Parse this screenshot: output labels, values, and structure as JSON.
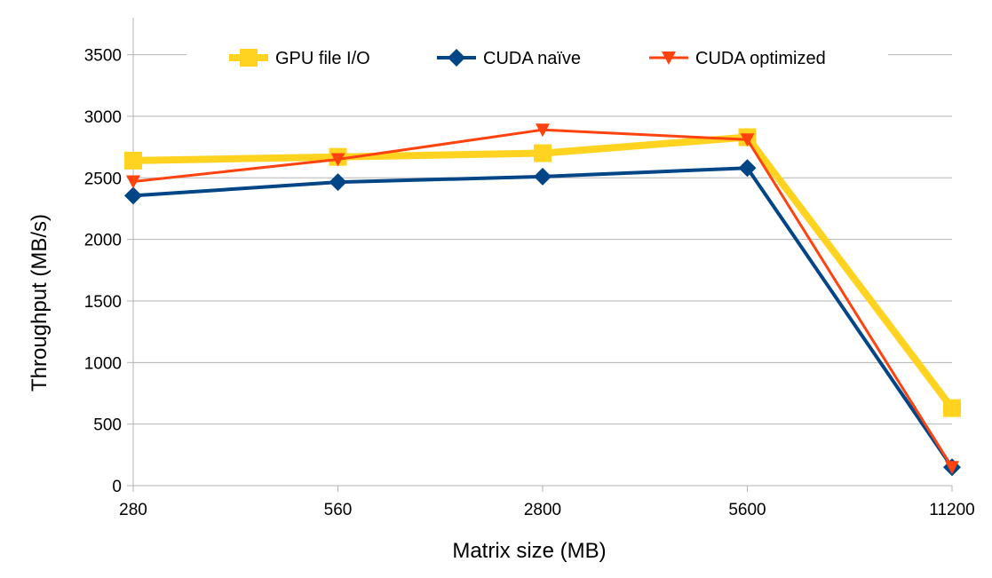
{
  "chart_data": {
    "type": "line",
    "title": "",
    "xlabel": "Matrix size (MB)",
    "ylabel": "Throughput (MB/s)",
    "categories": [
      "280",
      "560",
      "2800",
      "5600",
      "11200"
    ],
    "ylim": [
      0,
      3800
    ],
    "yticks": [
      0,
      500,
      1000,
      1500,
      2000,
      2500,
      3000,
      3500
    ],
    "grid": true,
    "legend_position": "top-center",
    "series": [
      {
        "name": "GPU file I/O",
        "values": [
          2640,
          2670,
          2700,
          2830,
          630
        ],
        "color": "#ffd320",
        "marker": "square"
      },
      {
        "name": "CUDA naïve",
        "values": [
          2355,
          2465,
          2510,
          2580,
          150
        ],
        "color": "#004586",
        "marker": "diamond"
      },
      {
        "name": "CUDA optimized",
        "values": [
          2470,
          2650,
          2890,
          2810,
          150
        ],
        "color": "#ff420e",
        "marker": "triangle-down"
      }
    ]
  }
}
